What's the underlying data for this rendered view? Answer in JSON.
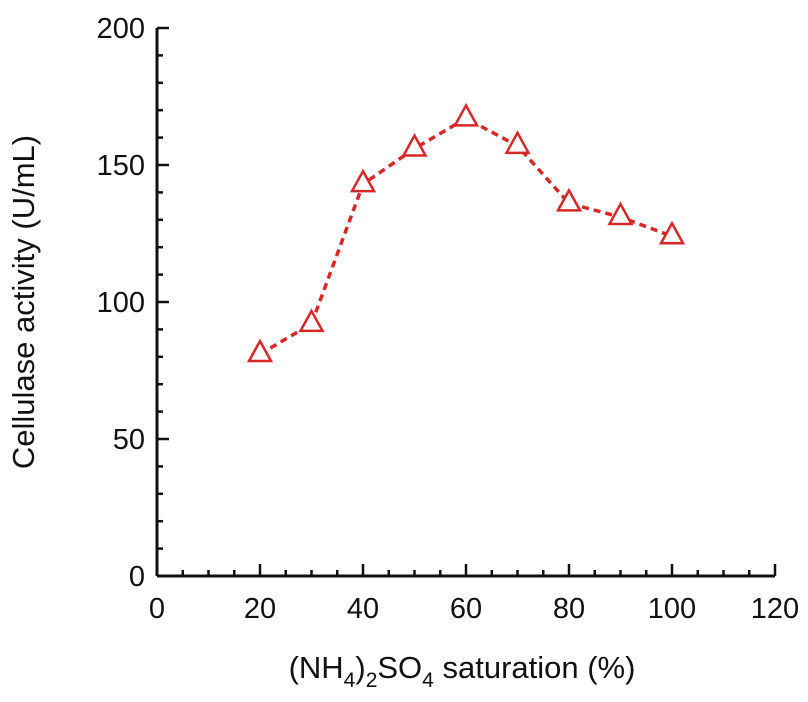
{
  "chart_data": {
    "type": "line",
    "title": "",
    "xlabel": {
      "parts": [
        "(NH",
        "4",
        ")",
        "2",
        "SO",
        "4",
        " saturation (%)"
      ]
    },
    "ylabel": "Cellulase activity (U/mL)",
    "xlim": [
      0,
      120
    ],
    "ylim": [
      0,
      200
    ],
    "xticks": [
      0,
      20,
      40,
      60,
      80,
      100,
      120
    ],
    "yticks": [
      0,
      50,
      100,
      150,
      200
    ],
    "xtick_labels": [
      "0",
      "20",
      "40",
      "60",
      "80",
      "100",
      "120"
    ],
    "ytick_labels": [
      "0",
      "50",
      "100",
      "150",
      "200"
    ],
    "grid": false,
    "series": [
      {
        "name": "Cellulase activity",
        "marker": "open-triangle",
        "line_style": "dashed",
        "color": "#d62828",
        "x": [
          20,
          30,
          40,
          50,
          60,
          70,
          80,
          90,
          100
        ],
        "y": [
          81,
          92,
          143,
          156,
          167,
          157,
          136,
          131,
          124
        ]
      }
    ]
  }
}
